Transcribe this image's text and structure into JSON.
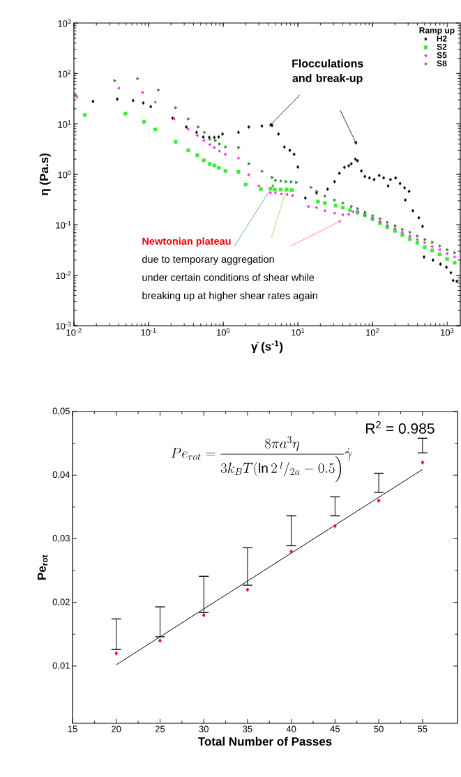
{
  "chart_data": [
    {
      "type": "scatter",
      "xlabel": "γ̇ (s$^{-1}$)",
      "ylabel": "η (Pa.s)",
      "legend_title": "Ramp up",
      "legend": "top right",
      "log": "xy",
      "xlim": [
        0.01,
        1500
      ],
      "ylim": [
        0.001,
        1000
      ],
      "xticks": [
        {
          "value": 0.01,
          "label": "10$^{-2}$"
        },
        {
          "value": 0.1,
          "label": "10$^{-1}$"
        },
        {
          "value": 1,
          "label": "10$^{0}$"
        },
        {
          "value": 10,
          "label": "10$^{1}$"
        },
        {
          "value": 100,
          "label": "10$^{2}$"
        },
        {
          "value": 1000,
          "label": "10$^{3}$"
        }
      ],
      "yticks": [
        {
          "value": 0.001,
          "label": "10$^{-3}$"
        },
        {
          "value": 0.01,
          "label": "10$^{-2}$"
        },
        {
          "value": 0.1,
          "label": "10$^{-1}$"
        },
        {
          "value": 1,
          "label": "10$^{0}$"
        },
        {
          "value": 10,
          "label": "10$^{1}$"
        },
        {
          "value": 100,
          "label": "10$^{2}$"
        },
        {
          "value": 1000,
          "label": "10$^{3}$"
        }
      ],
      "annotations": [
        {
          "text": "Flocculations and break-up",
          "x": 4.1,
          "y": 8.9
        },
        {
          "text": "Newtonian plateau",
          "x": 4.8,
          "y": 0.65
        },
        "due to temporary aggregation",
        "under certain conditions of shear while",
        "breaking up at higher shear rates again"
      ],
      "series": [
        {
          "name": "H2",
          "type": "scatter",
          "marker": "diamond",
          "color": "#000000",
          "x": [
            0.018,
            0.038,
            0.062,
            0.085,
            0.107,
            0.21,
            0.32,
            0.44,
            0.54,
            0.65,
            0.76,
            0.87,
            0.98,
            1.6,
            2.2,
            3.3,
            4.5,
            5.5,
            6.6,
            7.8,
            8.9,
            10,
            12.6,
            17.8,
            25,
            31,
            36,
            42,
            48,
            52,
            59,
            63,
            71,
            79,
            91,
            105,
            123,
            141,
            162,
            174,
            204,
            234,
            269,
            275,
            309,
            347,
            417,
            468,
            490,
            646,
            813,
            977,
            1122,
            1202,
            1349
          ],
          "values": [
            28,
            31,
            29,
            26,
            22,
            13,
            8.7,
            6.8,
            5.5,
            5.4,
            5.4,
            5.5,
            6.3,
            6.8,
            8.7,
            9.1,
            9.3,
            6.3,
            3.5,
            3.0,
            2.5,
            1.4,
            0.34,
            0.43,
            0.51,
            0.72,
            1.05,
            1.38,
            1.48,
            1.62,
            2.0,
            1.86,
            1.17,
            0.91,
            0.85,
            0.79,
            0.95,
            0.85,
            0.59,
            0.79,
            0.85,
            0.66,
            0.54,
            0.31,
            0.46,
            0.19,
            0.138,
            0.093,
            0.023,
            0.02,
            0.0166,
            0.0145,
            0.0112,
            0.0079,
            0.0076
          ]
        },
        {
          "name": "S2",
          "type": "scatter",
          "marker": "square",
          "color": "#33ee33",
          "x": [
            0.014,
            0.049,
            0.087,
            0.123,
            0.23,
            0.34,
            0.45,
            0.55,
            0.66,
            0.76,
            0.87,
            1.07,
            1.6,
            2.0,
            3.2,
            4.3,
            4.9,
            5.9,
            7.1,
            8.3,
            18.6,
            23,
            32,
            40,
            50,
            63,
            79,
            100,
            126,
            158,
            200,
            251,
            316,
            398,
            501,
            631,
            794,
            1000,
            1259
          ],
          "values": [
            15,
            16,
            11,
            7.8,
            4.4,
            3.0,
            2.4,
            1.9,
            1.6,
            1.5,
            1.35,
            1.17,
            1.12,
            0.63,
            0.51,
            0.52,
            0.5,
            0.5,
            0.5,
            0.49,
            0.29,
            0.27,
            0.24,
            0.22,
            0.195,
            0.174,
            0.155,
            0.129,
            0.107,
            0.089,
            0.076,
            0.063,
            0.052,
            0.044,
            0.036,
            0.031,
            0.026,
            0.021,
            0.0178
          ]
        },
        {
          "name": "S5",
          "type": "scatter",
          "marker": "triangle",
          "color": "#ee22ee",
          "x": [
            0.011,
            0.04,
            0.083,
            0.123,
            0.22,
            0.34,
            0.45,
            0.55,
            0.66,
            0.76,
            0.89,
            1.07,
            1.6,
            2.2,
            3.0,
            4.3,
            5.0,
            6.0,
            7.2,
            8.5,
            13.8,
            17.8,
            23,
            31,
            40,
            48,
            55,
            63,
            79,
            100,
            126,
            158,
            200,
            251,
            316,
            398,
            501,
            631,
            794,
            1000,
            1259
          ],
          "values": [
            34,
            51,
            42,
            27,
            12.6,
            7.9,
            5.9,
            4.7,
            3.9,
            3.4,
            2.9,
            2.5,
            2.1,
            0.98,
            0.59,
            0.43,
            0.43,
            0.41,
            0.4,
            0.38,
            0.23,
            0.22,
            0.19,
            0.17,
            0.158,
            0.162,
            0.182,
            0.186,
            0.158,
            0.135,
            0.115,
            0.098,
            0.083,
            0.071,
            0.06,
            0.051,
            0.044,
            0.037,
            0.032,
            0.027,
            0.023
          ]
        },
        {
          "name": "S8",
          "type": "scatter",
          "marker": "triangle",
          "color": "#1e7b1e",
          "x": [
            0.0105,
            0.035,
            0.071,
            0.135,
            0.23,
            0.34,
            0.46,
            0.56,
            0.66,
            0.78,
            0.89,
            1.07,
            1.6,
            2.2,
            3.3,
            4.5,
            5.0,
            5.9,
            6.9,
            8.1,
            9.5,
            15,
            17.8,
            23,
            31,
            40,
            52,
            63,
            79,
            100,
            126,
            158,
            200,
            251,
            316,
            398,
            501,
            631,
            794,
            1000,
            1259
          ],
          "values": [
            37,
            72,
            79,
            47,
            21,
            12.6,
            8.7,
            6.8,
            5.0,
            4.7,
            4.0,
            3.5,
            3.4,
            1.62,
            1.15,
            0.87,
            0.76,
            0.74,
            0.72,
            0.71,
            0.69,
            0.55,
            0.46,
            0.37,
            0.31,
            0.27,
            0.23,
            0.21,
            0.178,
            0.151,
            0.132,
            0.112,
            0.095,
            0.081,
            0.071,
            0.06,
            0.051,
            0.045,
            0.038,
            0.032,
            0.028
          ]
        }
      ]
    },
    {
      "type": "scatter",
      "xlabel": "Total Number of Passes",
      "ylabel": "Pe$_{rot}$",
      "xlim": [
        15,
        59
      ],
      "ylim": [
        0.001,
        0.05
      ],
      "xticks": [
        15,
        20,
        25,
        30,
        35,
        40,
        45,
        50,
        55
      ],
      "yticks": [
        {
          "value": 0.01,
          "label": "0,01"
        },
        {
          "value": 0.02,
          "label": "0,02"
        },
        {
          "value": 0.03,
          "label": "0,03"
        },
        {
          "value": 0.04,
          "label": "0,04"
        },
        {
          "value": 0.05,
          "label": "0,05"
        }
      ],
      "annotations": [
        "Pe_{rot} = \\frac{8\\pi a^{3}\\eta}{3k_{B}T(\\ln 2\\,{}^{l}/_{2a} - 0.5\\Big)}\\dot{\\gamma}",
        "R$^{2}$ = 0.985"
      ],
      "x": [
        20,
        25,
        30,
        35,
        40,
        45,
        50,
        55
      ],
      "series": [
        {
          "type": "scatter",
          "marker": "diamond",
          "color": "#ee1111",
          "values": [
            0.012,
            0.014,
            0.018,
            0.022,
            0.028,
            0.032,
            0.036,
            0.042
          ],
          "errors": [
            [
              0.0126,
              0.0174
            ],
            [
              0.0146,
              0.0193
            ],
            [
              0.0184,
              0.0241
            ],
            [
              0.0227,
              0.0286
            ],
            [
              0.0289,
              0.0336
            ],
            [
              0.0336,
              0.0366
            ],
            [
              0.0373,
              0.0403
            ],
            [
              0.0435,
              0.0458
            ]
          ]
        },
        {
          "type": "line",
          "color": "#000000",
          "x": [
            20,
            55
          ],
          "values": [
            0.0102,
            0.0409
          ]
        }
      ]
    }
  ]
}
